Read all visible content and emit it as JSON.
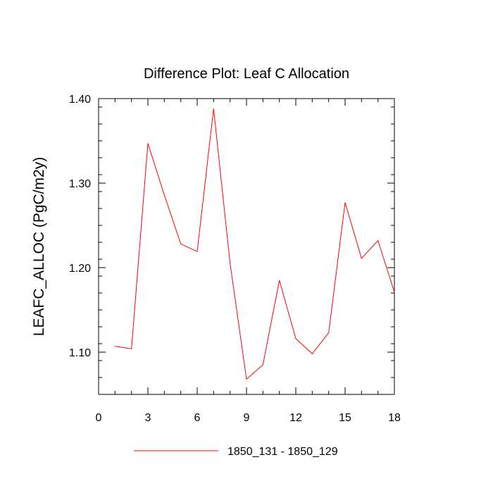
{
  "chart_data": {
    "type": "line",
    "title": "Difference Plot: Leaf C Allocation",
    "xlabel": "",
    "ylabel": "LEAFC_ALLOC  (PgC/m2y)",
    "xlim": [
      0,
      18
    ],
    "ylim": [
      1.05,
      1.4
    ],
    "x_ticks": [
      0,
      3,
      6,
      9,
      12,
      15,
      18
    ],
    "x_tick_labels": [
      "0",
      "3",
      "6",
      "9",
      "12",
      "15",
      "18"
    ],
    "y_ticks": [
      1.1,
      1.2,
      1.3,
      1.4
    ],
    "y_tick_labels": [
      "1.10",
      "1.20",
      "1.30",
      "1.40"
    ],
    "grid": false,
    "legend_position": "bottom-center",
    "series": [
      {
        "name": "1850_131 - 1850_129",
        "color": "#ff0000",
        "x": [
          1,
          2,
          3,
          4,
          5,
          6,
          7,
          8,
          9,
          10,
          11,
          12,
          13,
          14,
          15,
          16,
          17,
          18
        ],
        "values": [
          1.107,
          1.104,
          1.347,
          1.286,
          1.228,
          1.219,
          1.388,
          1.205,
          1.068,
          1.085,
          1.185,
          1.116,
          1.098,
          1.123,
          1.277,
          1.211,
          1.232,
          1.171
        ]
      }
    ]
  }
}
